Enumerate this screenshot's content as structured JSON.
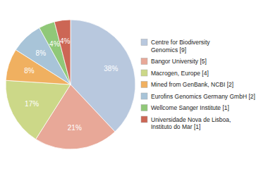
{
  "chart_data": {
    "type": "pie",
    "categories": [
      "Centre for Biodiversity\nGenomics [9]",
      "Bangor University [5]",
      "Macrogen, Europe [4]",
      "Mined from GenBank, NCBI [2]",
      "Eurofins Genomics Germany GmbH [2]",
      "Wellcome Sanger Institute [1]",
      "Universidade Nova de Lisboa,\nInstituto do Mar [1]"
    ],
    "values": [
      38,
      21,
      17,
      8,
      8,
      4,
      4
    ],
    "value_labels": [
      "38%",
      "21%",
      "17%",
      "8%",
      "8%",
      "4%",
      "4%"
    ],
    "colors": [
      "#b8c8de",
      "#e8a898",
      "#ccd888",
      "#f0b060",
      "#a8c4d8",
      "#90c878",
      "#cc6655"
    ],
    "data_labels": true,
    "legend": "right"
  }
}
